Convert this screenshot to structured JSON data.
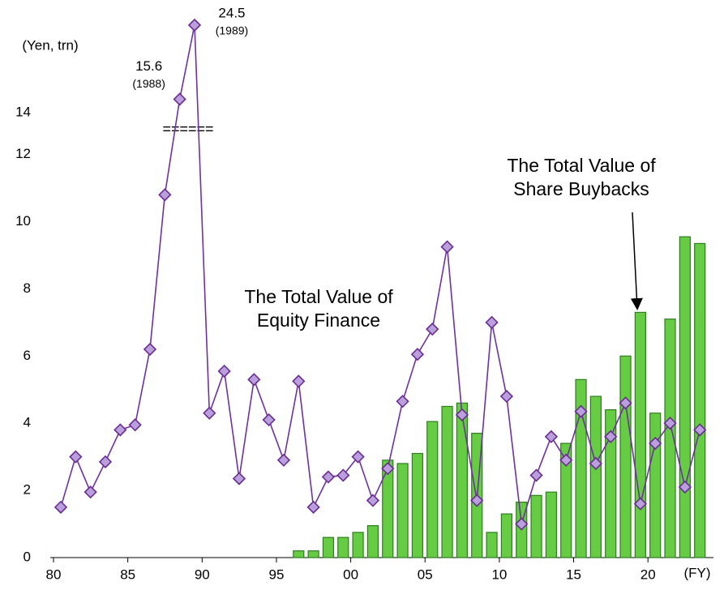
{
  "chart_data": {
    "type": "bar+line",
    "y_axis_label": "(Yen, trn)",
    "x_axis_label": "(FY)",
    "axis_break_mark": "======",
    "categories": [
      1980,
      1981,
      1982,
      1983,
      1984,
      1985,
      1986,
      1987,
      1988,
      1989,
      1990,
      1991,
      1992,
      1993,
      1994,
      1995,
      1996,
      1997,
      1998,
      1999,
      2000,
      2001,
      2002,
      2003,
      2004,
      2005,
      2006,
      2007,
      2008,
      2009,
      2010,
      2011,
      2012,
      2013,
      2014,
      2015,
      2016,
      2017,
      2018,
      2019,
      2020,
      2021,
      2022,
      2023
    ],
    "series": [
      {
        "name": "The Total Value of Share Buybacks",
        "kind": "bar",
        "color": "#66cc44",
        "values": [
          null,
          null,
          null,
          null,
          null,
          null,
          null,
          null,
          null,
          null,
          null,
          null,
          null,
          null,
          null,
          null,
          0.2,
          0.2,
          0.6,
          0.6,
          0.75,
          0.95,
          2.9,
          2.8,
          3.1,
          4.05,
          4.5,
          4.6,
          3.7,
          0.75,
          1.3,
          1.65,
          1.85,
          1.95,
          3.4,
          5.3,
          4.8,
          4.4,
          6.0,
          7.3,
          4.3,
          7.1,
          9.55,
          9.35
        ]
      },
      {
        "name": "The Total Value of Equity Finance",
        "kind": "line",
        "color": "#7030a0",
        "values": [
          1.5,
          3.0,
          1.95,
          2.85,
          3.8,
          3.95,
          6.2,
          10.8,
          15.6,
          24.5,
          4.3,
          5.55,
          2.35,
          5.3,
          4.1,
          2.9,
          5.25,
          1.5,
          2.4,
          2.45,
          3.0,
          1.7,
          2.65,
          4.65,
          6.05,
          6.8,
          9.25,
          4.25,
          1.7,
          7.0,
          4.8,
          1.0,
          2.45,
          3.6,
          2.9,
          4.35,
          2.8,
          3.6,
          4.6,
          1.6,
          3.4,
          4.0,
          2.1,
          3.8
        ],
        "annotations": {
          "8": "(1988)",
          "9": "(1989)"
        }
      }
    ],
    "ylim": [
      0,
      24.5
    ],
    "axis_break_at": 13,
    "yticks": [
      0,
      2,
      4,
      6,
      8,
      10,
      12,
      14
    ],
    "xticks": [
      {
        "value": 1980,
        "label": "80"
      },
      {
        "value": 1985,
        "label": "85"
      },
      {
        "value": 1990,
        "label": "90"
      },
      {
        "value": 1995,
        "label": "95"
      },
      {
        "value": 2000,
        "label": "00"
      },
      {
        "value": 2005,
        "label": "05"
      },
      {
        "value": 2010,
        "label": "10"
      },
      {
        "value": 2015,
        "label": "15"
      },
      {
        "value": 2020,
        "label": "20"
      }
    ]
  }
}
